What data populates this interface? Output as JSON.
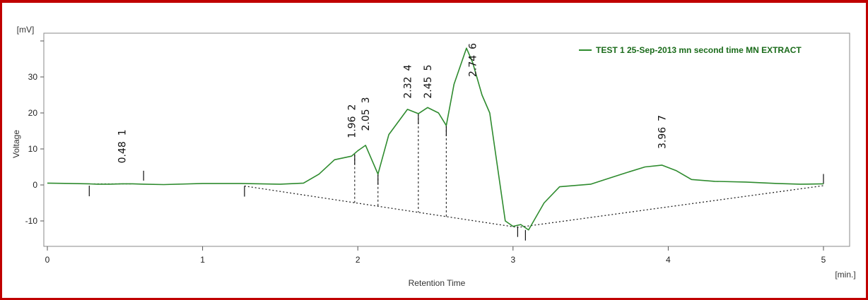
{
  "colors": {
    "frame_border": "#c00000",
    "trace": "#2e8b2e",
    "legend_text": "#1a6b1a",
    "baseline": "#222222"
  },
  "chart_data": {
    "type": "line",
    "x_unit_label": "[min.]",
    "y_unit_label": "[mV]",
    "xlabel": "Retention Time",
    "ylabel": "Voltage",
    "xlim": [
      0,
      5.2
    ],
    "ylim": [
      -16,
      42
    ],
    "xticks": [
      0,
      1,
      2,
      3,
      4,
      5
    ],
    "yticks": [
      -10,
      0,
      10,
      20,
      30
    ],
    "grid": false,
    "legend_position": "top-right",
    "series": [
      {
        "name": "TEST 1 25-Sep-2013 mn second time MN EXTRACT",
        "color": "#2e8b2e",
        "x": [
          0,
          0.15,
          0.27,
          0.32,
          0.4,
          0.48,
          0.55,
          0.62,
          0.75,
          1.0,
          1.25,
          1.5,
          1.65,
          1.75,
          1.85,
          1.96,
          2.0,
          2.05,
          2.1,
          2.13,
          2.2,
          2.32,
          2.39,
          2.45,
          2.52,
          2.57,
          2.62,
          2.7,
          2.74,
          2.8,
          2.85,
          2.9,
          2.95,
          3.0,
          3.05,
          3.1,
          3.2,
          3.3,
          3.5,
          3.7,
          3.85,
          3.96,
          4.05,
          4.15,
          4.3,
          4.5,
          4.7,
          4.85,
          5.0
        ],
        "y": [
          0.5,
          0.4,
          0.3,
          0.2,
          0.2,
          0.3,
          0.3,
          0.2,
          0.1,
          0.4,
          0.4,
          0.2,
          0.5,
          3.0,
          7.0,
          8.0,
          9.5,
          11.0,
          6.0,
          3.0,
          14.0,
          21.0,
          19.8,
          21.5,
          20.0,
          16.5,
          28.0,
          38.0,
          34.0,
          25.0,
          20.0,
          5.0,
          -10.0,
          -11.5,
          -11.0,
          -12.5,
          -5.0,
          -0.5,
          0.2,
          3.0,
          5.0,
          5.5,
          4.0,
          1.5,
          1.0,
          0.8,
          0.4,
          0.2,
          0.3
        ]
      }
    ],
    "peaks": [
      {
        "id": "1",
        "rt": "0.48"
      },
      {
        "id": "2",
        "rt": "1.96"
      },
      {
        "id": "3",
        "rt": "2.05"
      },
      {
        "id": "4",
        "rt": "2.32"
      },
      {
        "id": "5",
        "rt": "2.45"
      },
      {
        "id": "6",
        "rt": "2.74"
      },
      {
        "id": "7",
        "rt": "3.96"
      }
    ],
    "baseline_points": {
      "x": [
        1.27,
        3.03,
        5.0
      ],
      "y": [
        -0.3,
        -11.8,
        -0.2
      ]
    },
    "integration_marks": {
      "x": [
        0.27,
        0.62,
        1.27,
        1.98,
        2.13,
        2.39,
        2.57,
        3.03,
        3.08,
        5.0
      ],
      "y": [
        -0.2,
        1.2,
        -0.3,
        8.5,
        3.0,
        19.8,
        16.5,
        -11.5,
        -12.5,
        0.3
      ]
    }
  }
}
